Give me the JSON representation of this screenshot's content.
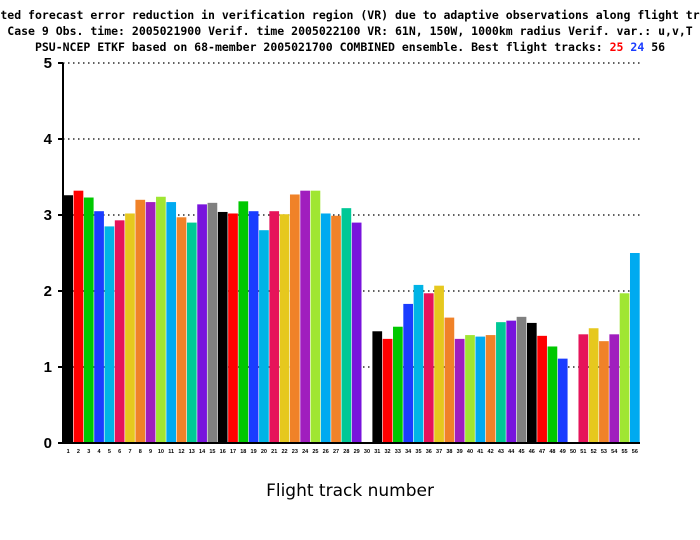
{
  "chart_data": {
    "type": "bar",
    "title_lines": [
      "Expected forecast error reduction in verification region (VR) due to adaptive observations along flight tracks.",
      "Case 9   Obs. time: 2005021900   Verif. time 2005022100   VR: 61N, 150W, 1000km radius   Verif. var.: u,v,T",
      "PSU-NCEP ETKF based on 68-member 2005021700 COMBINED ensemble.  Best flight tracks: "
    ],
    "best_tracks": [
      {
        "label": "25",
        "color": "#ff0000"
      },
      {
        "label": "24",
        "color": "#1a3cff"
      },
      {
        "label": "56",
        "color": "#000000"
      }
    ],
    "xlabel": "Flight track number",
    "ylabel": "",
    "ylim": [
      0,
      5
    ],
    "yticks": [
      0,
      1,
      2,
      3,
      4,
      5
    ],
    "grid": "horizontal-dotted",
    "categories": [
      "1",
      "2",
      "3",
      "4",
      "5",
      "6",
      "7",
      "8",
      "9",
      "10",
      "11",
      "12",
      "13",
      "14",
      "15",
      "16",
      "17",
      "18",
      "19",
      "20",
      "21",
      "22",
      "23",
      "24",
      "25",
      "26",
      "27",
      "28",
      "29",
      "30",
      "31",
      "32",
      "33",
      "34",
      "35",
      "36",
      "37",
      "38",
      "39",
      "40",
      "41",
      "42",
      "43",
      "44",
      "45",
      "46",
      "47",
      "48",
      "49",
      "50",
      "51",
      "52",
      "53",
      "54",
      "55",
      "56"
    ],
    "values": [
      3.26,
      3.32,
      3.23,
      3.05,
      2.85,
      2.93,
      3.02,
      3.2,
      3.17,
      3.24,
      3.17,
      2.97,
      2.9,
      3.14,
      3.16,
      3.04,
      3.02,
      3.18,
      3.05,
      2.8,
      3.05,
      3.01,
      3.27,
      3.32,
      3.32,
      3.02,
      2.99,
      3.09,
      2.9,
      0,
      1.47,
      1.37,
      1.53,
      1.83,
      2.08,
      1.97,
      2.07,
      1.65,
      1.37,
      1.42,
      1.4,
      1.42,
      1.59,
      1.61,
      1.66,
      1.58,
      1.41,
      1.27,
      1.11,
      0,
      1.43,
      1.51,
      1.34,
      1.43,
      1.97,
      2.5
    ],
    "colors": [
      "#000000",
      "#ff0000",
      "#00c800",
      "#1a3cff",
      "#00b4e6",
      "#e6145a",
      "#e6c81e",
      "#f08228",
      "#a01ebe",
      "#a0e632",
      "#00aaf0",
      "#f08228",
      "#00c896",
      "#7814dc",
      "#808080",
      "#000000",
      "#ff0000",
      "#00c800",
      "#1a3cff",
      "#00b4e6",
      "#e6145a",
      "#e6c81e",
      "#f08228",
      "#a01ebe",
      "#a0e632",
      "#00aaf0",
      "#f08228",
      "#00c896",
      "#7814dc",
      "#ffffff",
      "#000000",
      "#ff0000",
      "#00c800",
      "#1a3cff",
      "#00b4e6",
      "#e6145a",
      "#e6c81e",
      "#f08228",
      "#a01ebe",
      "#a0e632",
      "#00aaf0",
      "#f08228",
      "#00c896",
      "#7814dc",
      "#808080",
      "#000000",
      "#ff0000",
      "#00c800",
      "#1a3cff",
      "#ffffff",
      "#e6145a",
      "#e6c81e",
      "#f08228",
      "#a01ebe",
      "#a0e632",
      "#00aaf0"
    ]
  }
}
